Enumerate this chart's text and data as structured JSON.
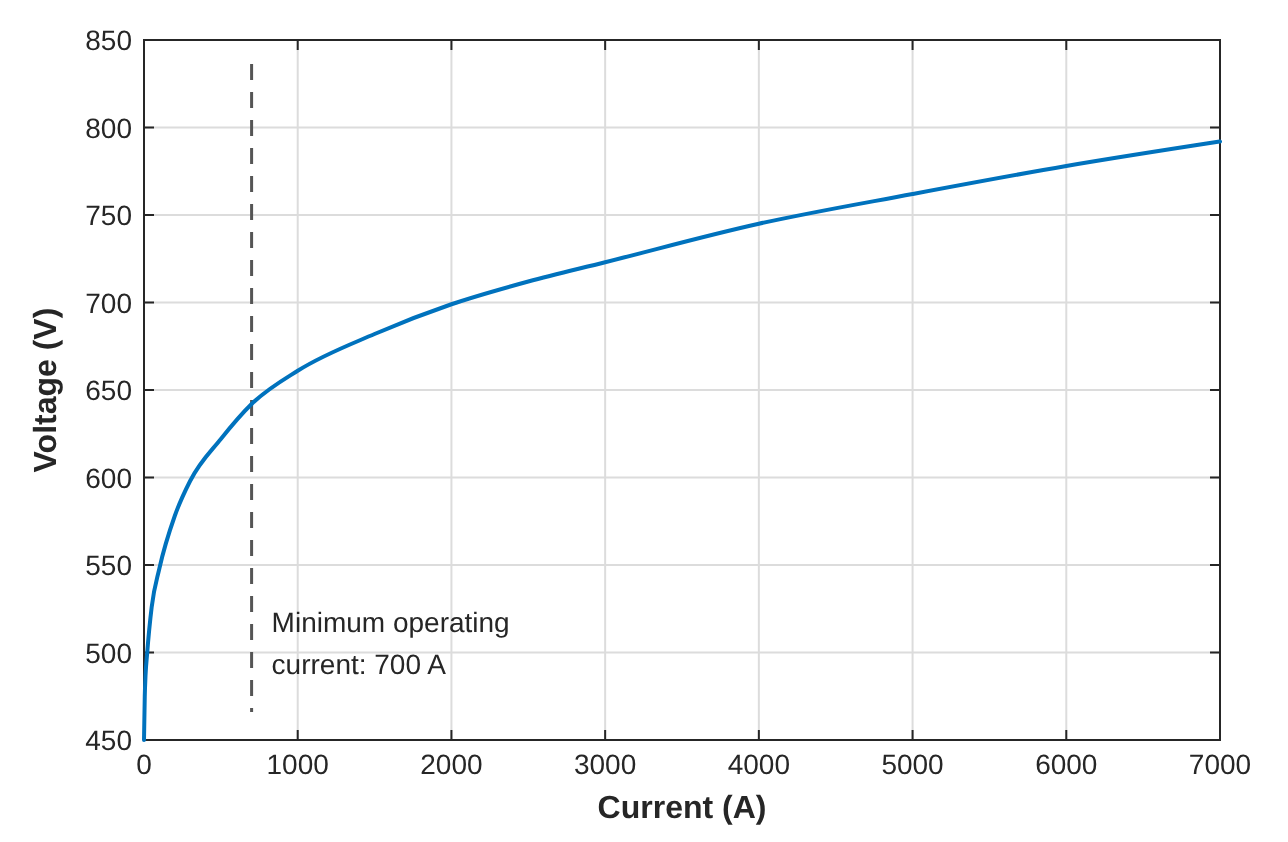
{
  "chart_data": {
    "type": "line",
    "xlabel": "Current (A)",
    "ylabel": "Voltage (V)",
    "x": [
      0,
      5,
      10,
      20,
      50,
      100,
      200,
      300,
      500,
      700,
      1000,
      1500,
      2000,
      2500,
      3000,
      4000,
      5000,
      6000,
      7000
    ],
    "series": [
      {
        "color": "#0072bd",
        "values": [
          450,
          475,
          487,
          499,
          526,
          548,
          578,
          598,
          622,
          642,
          661,
          682,
          699,
          712,
          723,
          745,
          762,
          778,
          792
        ]
      }
    ],
    "xlim": [
      0,
      7000
    ],
    "xticks": [
      0,
      1000,
      2000,
      3000,
      4000,
      5000,
      6000,
      7000
    ],
    "ylim": [
      450,
      850
    ],
    "yticks": [
      450,
      500,
      550,
      600,
      650,
      700,
      750,
      800,
      850
    ],
    "grid": true,
    "line_style": "solid",
    "marker": "none",
    "ref_lines": [
      {
        "axis": "x",
        "value": 700,
        "label": "Minimum operating current: 700 A",
        "color": "#555555",
        "line_style": "dashed"
      }
    ]
  }
}
